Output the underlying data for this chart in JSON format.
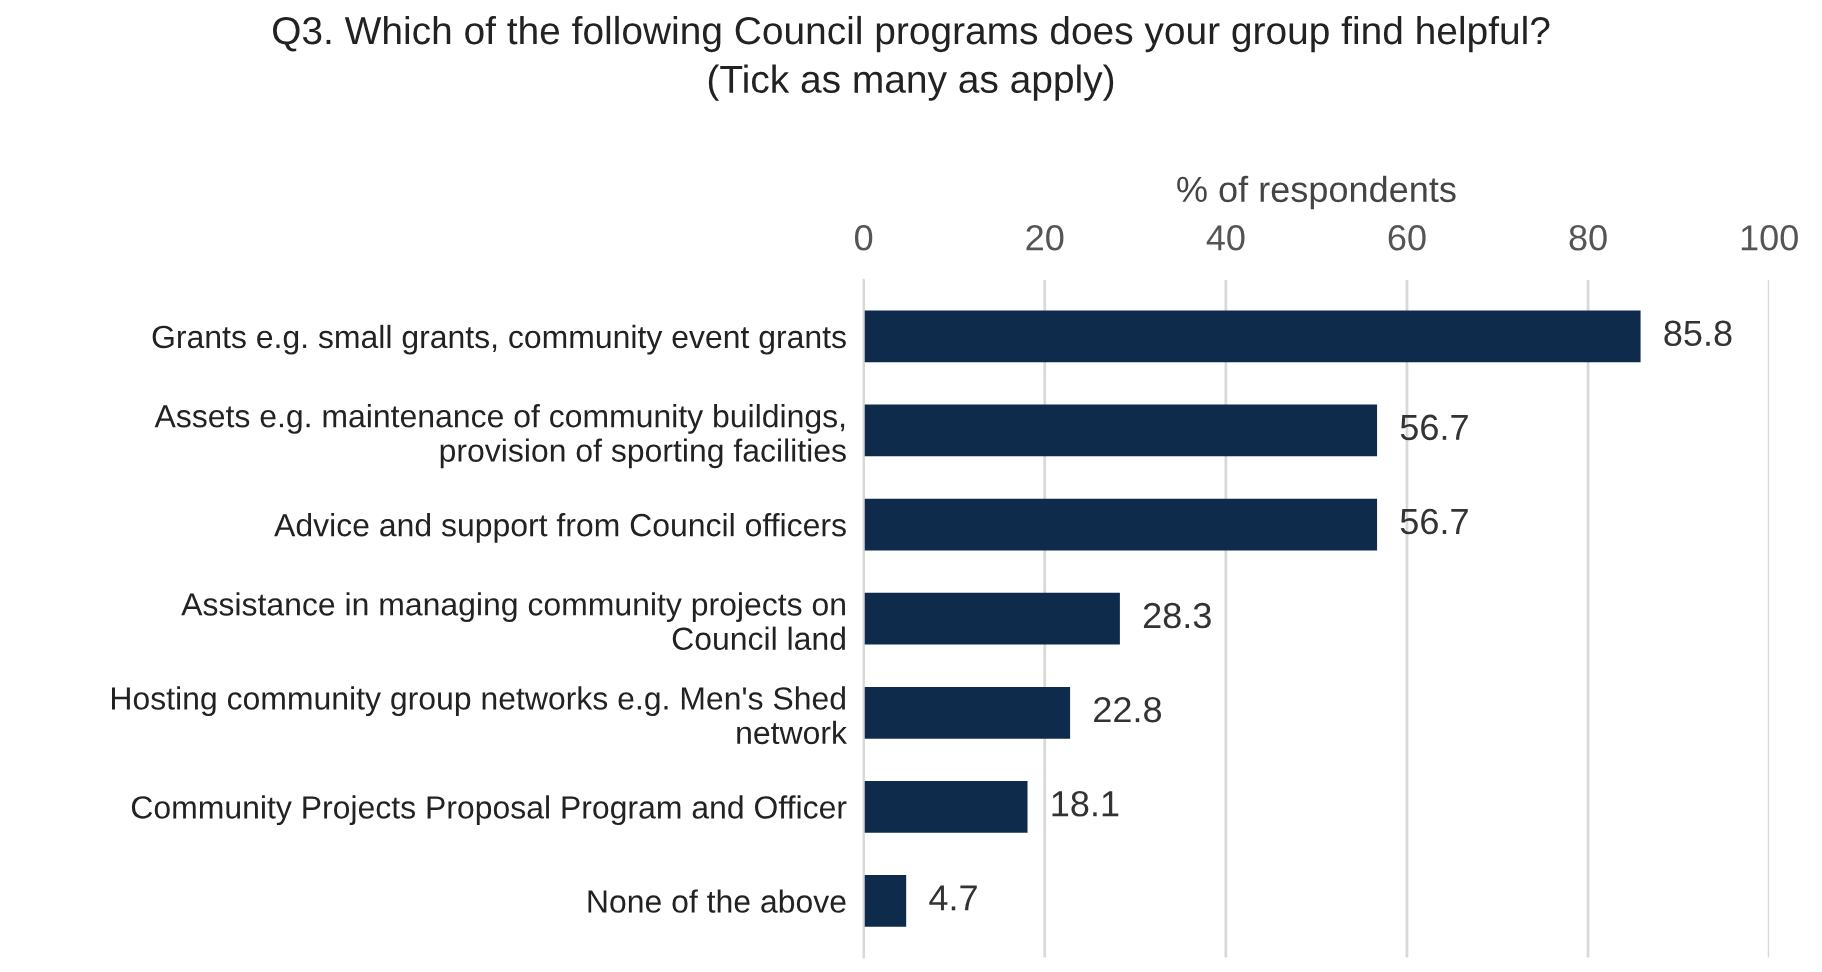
{
  "chart_data": {
    "type": "bar",
    "orientation": "horizontal",
    "title": "Q3. Which of the following Council programs does your group find helpful?",
    "subtitle": "(Tick as many as apply)",
    "xlabel": "% of respondents",
    "categories": [
      "Grants e.g. small grants, community event grants",
      "Assets e.g. maintenance of community buildings,\nprovision of sporting facilities",
      "Advice and support from Council officers",
      "Assistance in managing community projects on\nCouncil land",
      "Hosting community group networks e.g. Men's Shed\nnetwork",
      "Community Projects Proposal Program and Officer",
      "None of the above"
    ],
    "values": [
      85.8,
      56.7,
      56.7,
      28.3,
      22.8,
      18.1,
      4.7
    ],
    "color": "#0f2b4c",
    "xlim": [
      0,
      100
    ],
    "xticks": [
      0,
      20,
      40,
      60,
      80,
      100
    ],
    "grid": "x",
    "data_labels": true
  }
}
